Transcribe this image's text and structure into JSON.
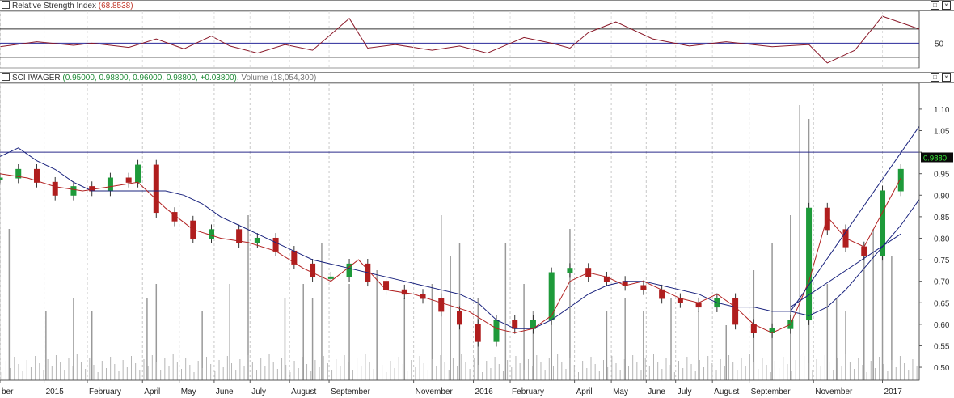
{
  "rsi_panel": {
    "title": "Relative Strength Index",
    "value_text": "(68.8538)",
    "axis_label": "50",
    "window_buttons": [
      "□",
      "×"
    ]
  },
  "price_panel": {
    "name": "SCI IWAGER",
    "quote_text": "(0.95000, 0.98800, 0.96000, 0.98800, +0.03800)",
    "volume_label": "Volume",
    "volume_text": "(18,054,300)",
    "last_price_tag": "0.9880",
    "window_buttons": [
      "□",
      "×"
    ]
  },
  "chart_data": [
    {
      "type": "line",
      "title": "Relative Strength Index",
      "y_ticks": [
        50
      ],
      "reference_lines": [
        70,
        50,
        30
      ],
      "ylim": [
        15,
        95
      ],
      "series": [
        {
          "name": "RSI",
          "color": "#8b1a2a",
          "x": [
            0,
            4,
            8,
            10,
            14,
            17,
            20,
            23,
            25,
            28,
            31,
            34,
            38,
            40,
            43,
            47,
            50,
            53,
            57,
            60,
            62,
            64,
            67,
            71,
            75,
            79,
            84,
            88,
            90,
            93,
            96,
            100
          ],
          "values": [
            45,
            52,
            47,
            50,
            44,
            56,
            42,
            60,
            46,
            36,
            48,
            40,
            85,
            43,
            48,
            40,
            46,
            36,
            58,
            50,
            43,
            65,
            80,
            56,
            46,
            52,
            45,
            48,
            22,
            40,
            88,
            70
          ]
        }
      ]
    },
    {
      "type": "candlestick",
      "title": "SCI IWAGER",
      "ylim": [
        0.47,
        1.16
      ],
      "y_ticks": [
        0.5,
        0.55,
        0.6,
        0.65,
        0.7,
        0.75,
        0.8,
        0.85,
        0.9,
        0.95,
        1.0,
        1.05,
        1.1
      ],
      "y_tick_labels": [
        "0.50",
        "0.55",
        "0.60",
        "0.65",
        "0.70",
        "0.75",
        "0.80",
        "0.85",
        "0.90",
        "0.95",
        "",
        "1.05",
        "1.10"
      ],
      "x_tick_labels": [
        "ber",
        "2015",
        "February",
        "April",
        "May",
        "June",
        "July",
        "August",
        "September",
        "November",
        "2016",
        "February",
        "April",
        "May",
        "June",
        "July",
        "August",
        "September",
        "November",
        "2017"
      ],
      "x_tick_positions": [
        0,
        4.8,
        9.5,
        15.5,
        19.5,
        23.3,
        27.2,
        31.5,
        35.8,
        45,
        51.5,
        55.5,
        62.5,
        66.5,
        70.3,
        73.5,
        77.5,
        81.5,
        88.5,
        96
      ],
      "horizontal_line": 1.0,
      "last_close": 0.988,
      "close_series": {
        "x": [
          0,
          2,
          4,
          6,
          8,
          10,
          12,
          14,
          15,
          17,
          19,
          21,
          23,
          26,
          28,
          30,
          32,
          34,
          36,
          38,
          40,
          42,
          44,
          46,
          48,
          50,
          52,
          54,
          56,
          58,
          60,
          62,
          64,
          66,
          68,
          70,
          72,
          74,
          76,
          78,
          80,
          82,
          84,
          86,
          88,
          90,
          92,
          94,
          96,
          98
        ],
        "values": [
          0.94,
          0.96,
          0.93,
          0.9,
          0.92,
          0.91,
          0.94,
          0.93,
          0.97,
          0.86,
          0.84,
          0.8,
          0.82,
          0.79,
          0.8,
          0.77,
          0.74,
          0.71,
          0.71,
          0.74,
          0.7,
          0.68,
          0.67,
          0.66,
          0.63,
          0.6,
          0.56,
          0.61,
          0.59,
          0.61,
          0.72,
          0.73,
          0.71,
          0.7,
          0.69,
          0.68,
          0.66,
          0.65,
          0.64,
          0.66,
          0.6,
          0.58,
          0.59,
          0.61,
          0.87,
          0.82,
          0.78,
          0.76,
          0.91,
          0.96
        ]
      },
      "ma_short": {
        "color": "#b22222",
        "x": [
          0,
          3,
          6,
          9,
          12,
          15,
          18,
          21,
          24,
          27,
          30,
          33,
          36,
          39,
          42,
          45,
          48,
          51,
          54,
          56,
          58,
          60,
          62,
          64,
          66,
          68,
          70,
          72,
          74,
          76,
          78,
          80,
          82,
          84,
          86,
          88,
          90,
          92,
          94,
          96,
          98
        ],
        "values": [
          0.95,
          0.94,
          0.92,
          0.91,
          0.92,
          0.93,
          0.87,
          0.82,
          0.8,
          0.79,
          0.77,
          0.73,
          0.7,
          0.75,
          0.68,
          0.67,
          0.65,
          0.63,
          0.59,
          0.58,
          0.59,
          0.62,
          0.7,
          0.72,
          0.71,
          0.69,
          0.7,
          0.68,
          0.66,
          0.65,
          0.67,
          0.64,
          0.6,
          0.58,
          0.6,
          0.7,
          0.85,
          0.8,
          0.78,
          0.86,
          0.94
        ]
      },
      "ma_long": {
        "color": "#1a237e",
        "x": [
          0,
          2,
          4,
          6,
          8,
          10,
          12,
          14,
          16,
          18,
          20,
          22,
          24,
          26,
          28,
          30,
          32,
          34,
          36,
          38,
          40,
          42,
          44,
          46,
          48,
          50,
          52,
          54,
          56,
          58,
          60,
          62,
          64,
          66,
          68,
          70,
          72,
          74,
          76,
          78,
          80,
          82,
          84,
          86,
          88,
          90,
          92,
          94,
          96,
          98,
          100
        ],
        "values": [
          0.99,
          1.01,
          0.98,
          0.96,
          0.93,
          0.91,
          0.91,
          0.91,
          0.91,
          0.91,
          0.9,
          0.88,
          0.85,
          0.83,
          0.81,
          0.79,
          0.77,
          0.75,
          0.74,
          0.73,
          0.72,
          0.71,
          0.7,
          0.69,
          0.68,
          0.67,
          0.65,
          0.61,
          0.59,
          0.59,
          0.61,
          0.64,
          0.67,
          0.69,
          0.7,
          0.7,
          0.69,
          0.68,
          0.67,
          0.65,
          0.64,
          0.64,
          0.63,
          0.63,
          0.62,
          0.64,
          0.68,
          0.73,
          0.78,
          0.83,
          0.89
        ]
      },
      "trend_lines": [
        {
          "color": "#1a237e",
          "x": [
            86,
            100
          ],
          "values": [
            0.63,
            1.06
          ]
        },
        {
          "color": "#1a237e",
          "x": [
            86,
            98
          ],
          "values": [
            0.64,
            0.81
          ]
        }
      ],
      "volume": {
        "color": "#999999",
        "spikes_x": [
          1,
          5,
          8,
          10,
          16,
          17,
          22,
          25,
          27,
          31,
          33,
          34,
          35,
          38,
          41,
          44,
          47,
          48,
          49,
          50,
          52,
          55,
          57,
          58,
          60,
          62,
          66,
          68,
          70,
          73,
          76,
          79,
          82,
          84,
          86,
          87,
          88,
          90,
          91,
          92,
          94,
          95,
          96,
          97
        ],
        "spikes_rel": [
          0.55,
          0.25,
          0.3,
          0.25,
          0.3,
          0.35,
          0.25,
          0.35,
          0.6,
          0.3,
          0.35,
          0.3,
          0.5,
          0.35,
          0.4,
          0.3,
          0.35,
          0.6,
          0.45,
          0.5,
          0.3,
          0.5,
          0.35,
          0.25,
          0.2,
          0.55,
          0.25,
          0.3,
          0.25,
          0.3,
          0.25,
          0.2,
          0.4,
          0.5,
          0.6,
          1.0,
          0.95,
          0.35,
          0.3,
          0.25,
          0.45,
          0.55,
          0.65,
          0.45
        ]
      }
    }
  ]
}
